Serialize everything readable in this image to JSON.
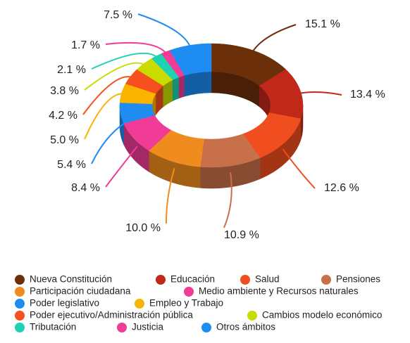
{
  "chart_data": {
    "type": "pie",
    "donut": true,
    "categories": [
      "Nueva Constitución",
      "Educación",
      "Salud",
      "Pensiones",
      "Participación ciudadana",
      "Medio ambiente y Recursos naturales",
      "Poder legislativo",
      "Empleo y Trabajo",
      "Poder ejecutivo/Administración pública",
      "Cambios modelo económico",
      "Tributación",
      "Justicia",
      "Otros ámbitos"
    ],
    "values": [
      15.1,
      13.4,
      12.6,
      10.9,
      10.0,
      8.4,
      5.4,
      5.0,
      4.2,
      3.8,
      2.1,
      1.7,
      7.5
    ],
    "value_labels": [
      "15.1 %",
      "13.4 %",
      "12.6 %",
      "10.9 %",
      "10.0 %",
      "8.4 %",
      "5.4 %",
      "5.0 %",
      "4.2 %",
      "3.8 %",
      "2.1 %",
      "1.7 %",
      "7.5 %"
    ],
    "colors": [
      "#6b2f0a",
      "#c0281a",
      "#f04e1e",
      "#c8704a",
      "#f08c1e",
      "#f03c96",
      "#1e8cf0",
      "#fab400",
      "#f5501e",
      "#c8dc00",
      "#1ed2b4",
      "#f03c96",
      "#1e8cf0"
    ],
    "legend": "bottom"
  }
}
